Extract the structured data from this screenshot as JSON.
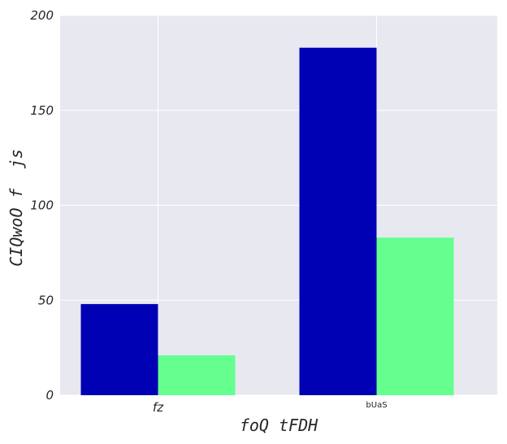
{
  "chart_data": {
    "type": "bar",
    "title": "",
    "xlabel": "foQ tFDH",
    "ylabel": "CIQwoO f  js",
    "categories": [
      "fz",
      "bUaS"
    ],
    "series": [
      {
        "values": [
          48,
          183
        ],
        "color": "#0000b4"
      },
      {
        "values": [
          21,
          83
        ],
        "color": "#64ff8f"
      }
    ],
    "ylim": [
      0,
      200
    ],
    "yticks": [
      0,
      50,
      100,
      150,
      200
    ],
    "grid": true,
    "background": "#e8e8f1",
    "grid_color": "#ffffff",
    "legend": "none"
  }
}
